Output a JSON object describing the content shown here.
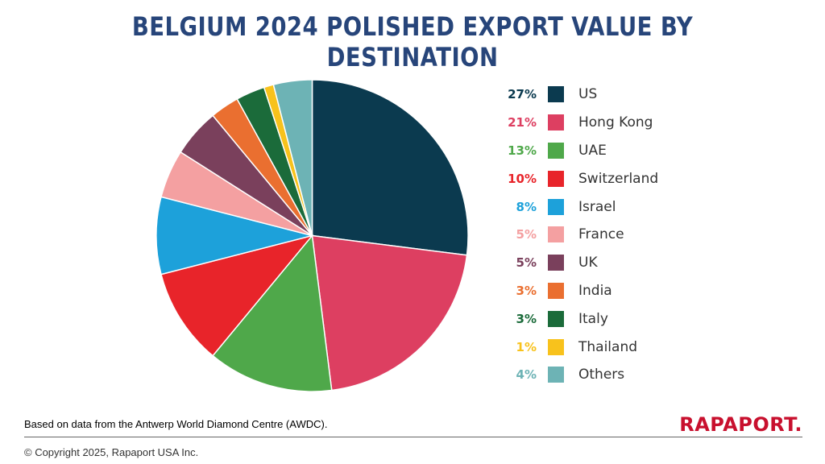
{
  "title": "BELGIUM 2024 POLISHED EXPORT VALUE BY DESTINATION",
  "chart_data": {
    "type": "pie",
    "title": "BELGIUM 2024 POLISHED EXPORT VALUE BY DESTINATION",
    "slices": [
      {
        "label": "US",
        "value": 27,
        "pct_text": "27%",
        "color": "#0b3a4f"
      },
      {
        "label": "Hong Kong",
        "value": 21,
        "pct_text": "21%",
        "color": "#dd3f61"
      },
      {
        "label": "UAE",
        "value": 13,
        "pct_text": "13%",
        "color": "#4fa84a"
      },
      {
        "label": "Switzerland",
        "value": 10,
        "pct_text": "10%",
        "color": "#e8242a"
      },
      {
        "label": "Israel",
        "value": 8,
        "pct_text": "8%",
        "color": "#1da1da"
      },
      {
        "label": "France",
        "value": 5,
        "pct_text": "5%",
        "color": "#f4a0a1"
      },
      {
        "label": "UK",
        "value": 5,
        "pct_text": "5%",
        "color": "#7a405c"
      },
      {
        "label": "India",
        "value": 3,
        "pct_text": "3%",
        "color": "#ea6f30"
      },
      {
        "label": "Italy",
        "value": 3,
        "pct_text": "3%",
        "color": "#1b6b3a"
      },
      {
        "label": "Thailand",
        "value": 1,
        "pct_text": "1%",
        "color": "#f8c21c"
      },
      {
        "label": "Others",
        "value": 4,
        "pct_text": "4%",
        "color": "#6db3b5"
      }
    ],
    "legend": "right"
  },
  "footer": {
    "source": "Based on data from the Antwerp World Diamond Centre (AWDC).",
    "copyright": "© Copyright 2025, Rapaport USA Inc.",
    "logo": "RAPAPORT."
  }
}
